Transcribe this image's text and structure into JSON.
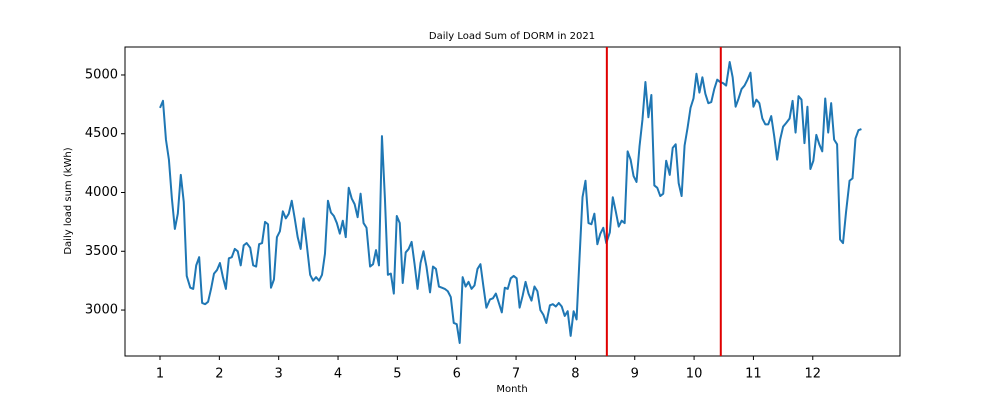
{
  "chart_data": {
    "type": "line",
    "title": "Daily Load Sum of DORM in 2021",
    "xlabel": "Month",
    "ylabel": "Daily load sum (kWh)",
    "color": "#1f77b4",
    "x": [
      1.0,
      1.05,
      1.1,
      1.15,
      1.2,
      1.25,
      1.3,
      1.35,
      1.4,
      1.45,
      1.51,
      1.56,
      1.61,
      1.66,
      1.71,
      1.76,
      1.81,
      1.86,
      1.91,
      1.96,
      2.01,
      2.06,
      2.11,
      2.16,
      2.21,
      2.26,
      2.31,
      2.36,
      2.41,
      2.46,
      2.52,
      2.57,
      2.62,
      2.67,
      2.72,
      2.77,
      2.82,
      2.87,
      2.92,
      2.97,
      3.02,
      3.07,
      3.12,
      3.17,
      3.22,
      3.27,
      3.32,
      3.37,
      3.42,
      3.47,
      3.53,
      3.58,
      3.63,
      3.68,
      3.73,
      3.78,
      3.83,
      3.88,
      3.93,
      3.98,
      4.03,
      4.08,
      4.13,
      4.18,
      4.23,
      4.28,
      4.33,
      4.38,
      4.43,
      4.48,
      4.54,
      4.59,
      4.64,
      4.69,
      4.74,
      4.79,
      4.84,
      4.89,
      4.94,
      4.99,
      5.04,
      5.09,
      5.14,
      5.19,
      5.24,
      5.29,
      5.34,
      5.39,
      5.44,
      5.49,
      5.55,
      5.6,
      5.65,
      5.7,
      5.75,
      5.8,
      5.85,
      5.9,
      5.95,
      6.0,
      6.05,
      6.1,
      6.15,
      6.2,
      6.25,
      6.3,
      6.35,
      6.4,
      6.45,
      6.5,
      6.56,
      6.61,
      6.66,
      6.71,
      6.76,
      6.81,
      6.86,
      6.91,
      6.96,
      7.01,
      7.06,
      7.11,
      7.16,
      7.21,
      7.26,
      7.31,
      7.36,
      7.41,
      7.46,
      7.51,
      7.57,
      7.62,
      7.67,
      7.72,
      7.77,
      7.82,
      7.87,
      7.92,
      7.97,
      8.02,
      8.07,
      8.12,
      8.17,
      8.22,
      8.27,
      8.32,
      8.37,
      8.42,
      8.47,
      8.52,
      8.58,
      8.63,
      8.68,
      8.73,
      8.78,
      8.83,
      8.88,
      8.93,
      8.98,
      9.03,
      9.08,
      9.13,
      9.18,
      9.23,
      9.28,
      9.33,
      9.38,
      9.43,
      9.48,
      9.53,
      9.59,
      9.64,
      9.69,
      9.74,
      9.79,
      9.84,
      9.89,
      9.94,
      9.99,
      10.04,
      10.09,
      10.14,
      10.19,
      10.24,
      10.29,
      10.34,
      10.39,
      10.44,
      10.49,
      10.54,
      10.6,
      10.65,
      10.7,
      10.75,
      10.8,
      10.85,
      10.9,
      10.95,
      11.0,
      11.05,
      11.1,
      11.15,
      11.2,
      11.25,
      11.3,
      11.35,
      11.4,
      11.45,
      11.5,
      11.55,
      11.61,
      11.66,
      11.71,
      11.76,
      11.81,
      11.86,
      11.91,
      11.96,
      12.01,
      12.06,
      12.11,
      12.16,
      12.21,
      12.26,
      12.31,
      12.36,
      12.41,
      12.46,
      12.51,
      12.56,
      12.62,
      12.67,
      12.72,
      12.77,
      12.82
    ],
    "values": [
      4720,
      4780,
      4450,
      4280,
      3950,
      3690,
      3820,
      4150,
      3920,
      3290,
      3190,
      3180,
      3380,
      3450,
      3060,
      3050,
      3070,
      3180,
      3310,
      3340,
      3400,
      3280,
      3180,
      3440,
      3450,
      3520,
      3500,
      3380,
      3550,
      3570,
      3530,
      3380,
      3370,
      3560,
      3570,
      3750,
      3730,
      3190,
      3260,
      3620,
      3670,
      3840,
      3780,
      3820,
      3930,
      3780,
      3620,
      3520,
      3780,
      3570,
      3300,
      3250,
      3280,
      3250,
      3300,
      3480,
      3930,
      3830,
      3800,
      3740,
      3650,
      3760,
      3620,
      4040,
      3950,
      3900,
      3790,
      3990,
      3740,
      3700,
      3370,
      3390,
      3510,
      3380,
      4480,
      3950,
      3300,
      3310,
      3140,
      3800,
      3740,
      3230,
      3490,
      3520,
      3580,
      3390,
      3180,
      3400,
      3500,
      3370,
      3150,
      3370,
      3350,
      3200,
      3190,
      3180,
      3160,
      3110,
      2890,
      2880,
      2720,
      3280,
      3200,
      3240,
      3180,
      3210,
      3350,
      3390,
      3200,
      3020,
      3090,
      3100,
      3140,
      3060,
      2980,
      3190,
      3180,
      3270,
      3290,
      3270,
      3020,
      3120,
      3240,
      3140,
      3080,
      3200,
      3160,
      3000,
      2960,
      2890,
      3040,
      3050,
      3030,
      3060,
      3030,
      2950,
      2990,
      2780,
      2990,
      2920,
      3450,
      3960,
      4100,
      3740,
      3730,
      3820,
      3560,
      3650,
      3700,
      3570,
      3660,
      3960,
      3840,
      3710,
      3760,
      3740,
      4350,
      4280,
      4140,
      4090,
      4390,
      4620,
      4940,
      4640,
      4830,
      4060,
      4040,
      3970,
      3990,
      4270,
      4150,
      4380,
      4410,
      4080,
      3970,
      4400,
      4550,
      4720,
      4800,
      5010,
      4850,
      4980,
      4840,
      4760,
      4770,
      4880,
      4960,
      4940,
      4930,
      4910,
      5110,
      4980,
      4730,
      4800,
      4880,
      4910,
      4960,
      5020,
      4730,
      4790,
      4760,
      4630,
      4580,
      4580,
      4650,
      4480,
      4280,
      4450,
      4560,
      4590,
      4630,
      4780,
      4510,
      4820,
      4790,
      4420,
      4730,
      4200,
      4270,
      4490,
      4410,
      4350,
      4800,
      4510,
      4760,
      4450,
      4410,
      3600,
      3570,
      3830,
      4100,
      4120,
      4460,
      4530,
      4540
    ],
    "vlines": [
      8.53,
      10.45
    ],
    "vline_color": "#e00000",
    "xlim": [
      0.41,
      13.47
    ],
    "ylim": [
      2609,
      5238
    ],
    "xticks": [
      1,
      2,
      3,
      4,
      5,
      6,
      7,
      8,
      9,
      10,
      11,
      12
    ],
    "yticks": [
      3000,
      3500,
      4000,
      4500,
      5000
    ],
    "grid": false
  }
}
